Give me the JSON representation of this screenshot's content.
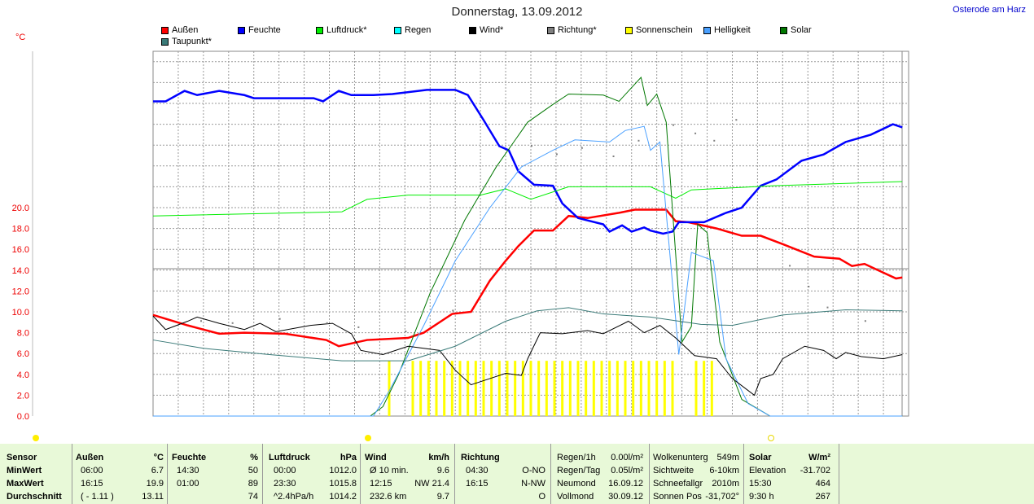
{
  "header": {
    "title": "Donnerstag, 13.09.2012",
    "location": "Osterode am Harz"
  },
  "chart_data": {
    "type": "line",
    "unit_label": "°C",
    "xlim": [
      0,
      24
    ],
    "ylim": [
      0,
      35
    ],
    "x_unit": "hours",
    "yticks": [
      "0.0",
      "2.0",
      "4.0",
      "6.0",
      "8.0",
      "10.0",
      "12.0",
      "14.0",
      "16.0",
      "18.0",
      "20.0"
    ],
    "grid": true,
    "legend": [
      {
        "name": "Außen",
        "color": "#ff0000"
      },
      {
        "name": "Feuchte",
        "color": "#0000ff"
      },
      {
        "name": "Luftdruck*",
        "color": "#00ee00"
      },
      {
        "name": "Regen",
        "color": "#00ffff"
      },
      {
        "name": "Wind*",
        "color": "#000000"
      },
      {
        "name": "Richtung*",
        "color": "#808080"
      },
      {
        "name": "Sonnenschein",
        "color": "#ffff00"
      },
      {
        "name": "Helligkeit",
        "color": "#4aa0ff"
      },
      {
        "name": "Solar",
        "color": "#007700"
      },
      {
        "name": "Taupunkt*",
        "color": "#3a7a78"
      }
    ],
    "series": [
      {
        "name": "Außen",
        "color": "#ff0000",
        "width": 2.5,
        "points": [
          [
            0,
            9.7
          ],
          [
            1.1,
            8.7
          ],
          [
            2.1,
            7.9
          ],
          [
            2.9,
            8.0
          ],
          [
            4.2,
            7.9
          ],
          [
            5.5,
            7.3
          ],
          [
            5.9,
            6.7
          ],
          [
            6.8,
            7.3
          ],
          [
            8.1,
            7.5
          ],
          [
            8.6,
            8.0
          ],
          [
            9.2,
            9.2
          ],
          [
            9.5,
            9.8
          ],
          [
            10.1,
            10.0
          ],
          [
            10.7,
            13.0
          ],
          [
            11.2,
            14.9
          ],
          [
            11.6,
            16.3
          ],
          [
            12.1,
            17.8
          ],
          [
            12.7,
            17.8
          ],
          [
            13.2,
            19.2
          ],
          [
            13.8,
            19.0
          ],
          [
            14.8,
            19.5
          ],
          [
            15.3,
            19.8
          ],
          [
            16.3,
            19.8
          ],
          [
            16.6,
            18.7
          ],
          [
            17.0,
            18.6
          ],
          [
            17.9,
            18.0
          ],
          [
            18.7,
            17.3
          ],
          [
            19.3,
            17.3
          ],
          [
            20.0,
            16.5
          ],
          [
            21.0,
            15.3
          ],
          [
            21.8,
            15.1
          ],
          [
            22.2,
            14.4
          ],
          [
            22.6,
            14.6
          ],
          [
            23.1,
            13.9
          ],
          [
            23.6,
            13.2
          ],
          [
            23.8,
            13.3
          ]
        ]
      },
      {
        "name": "Feuchte",
        "color": "#0000ff",
        "width": 2.5,
        "points": [
          [
            0,
            30.2
          ],
          [
            0.4,
            30.2
          ],
          [
            1.0,
            31.2
          ],
          [
            1.4,
            30.8
          ],
          [
            2.1,
            31.2
          ],
          [
            2.9,
            30.8
          ],
          [
            3.2,
            30.5
          ],
          [
            5.1,
            30.5
          ],
          [
            5.4,
            30.2
          ],
          [
            5.9,
            31.2
          ],
          [
            6.3,
            30.8
          ],
          [
            7.0,
            30.8
          ],
          [
            7.6,
            30.9
          ],
          [
            8.7,
            31.3
          ],
          [
            9.6,
            31.3
          ],
          [
            10.0,
            30.8
          ],
          [
            10.5,
            28.4
          ],
          [
            11.0,
            25.9
          ],
          [
            11.3,
            25.5
          ],
          [
            11.6,
            23.5
          ],
          [
            12.1,
            22.2
          ],
          [
            12.7,
            22.1
          ],
          [
            13.0,
            20.4
          ],
          [
            13.5,
            19.0
          ],
          [
            14.3,
            18.4
          ],
          [
            14.5,
            17.7
          ],
          [
            14.9,
            18.3
          ],
          [
            15.2,
            17.7
          ],
          [
            15.6,
            18.1
          ],
          [
            15.8,
            17.8
          ],
          [
            16.2,
            17.5
          ],
          [
            16.5,
            17.7
          ],
          [
            16.7,
            18.6
          ],
          [
            17.5,
            18.6
          ],
          [
            18.2,
            19.5
          ],
          [
            18.7,
            20.0
          ],
          [
            19.3,
            22.1
          ],
          [
            19.8,
            22.7
          ],
          [
            20.6,
            24.5
          ],
          [
            21.3,
            25.1
          ],
          [
            22.0,
            26.3
          ],
          [
            22.8,
            27.0
          ],
          [
            23.5,
            28.0
          ],
          [
            23.8,
            27.7
          ]
        ]
      },
      {
        "name": "Luftdruck*",
        "color": "#00ee00",
        "width": 1,
        "points": [
          [
            0,
            19.2
          ],
          [
            6.0,
            19.6
          ],
          [
            6.8,
            20.8
          ],
          [
            8.1,
            21.2
          ],
          [
            10.4,
            21.2
          ],
          [
            11.2,
            21.8
          ],
          [
            12.0,
            20.8
          ],
          [
            13.2,
            22.0
          ],
          [
            15.8,
            22.0
          ],
          [
            16.6,
            20.9
          ],
          [
            17.1,
            21.7
          ],
          [
            19.7,
            22.1
          ],
          [
            23.8,
            22.5
          ]
        ]
      },
      {
        "name": "Solar",
        "color": "#007700",
        "width": 1,
        "points": [
          [
            0,
            0
          ],
          [
            6.9,
            0
          ],
          [
            7.3,
            0.9
          ],
          [
            7.8,
            4.0
          ],
          [
            8.8,
            11.8
          ],
          [
            9.9,
            18.8
          ],
          [
            10.9,
            23.9
          ],
          [
            11.9,
            28.2
          ],
          [
            12.7,
            29.9
          ],
          [
            13.2,
            30.9
          ],
          [
            14.3,
            30.8
          ],
          [
            14.8,
            30.2
          ],
          [
            15.5,
            32.5
          ],
          [
            15.7,
            29.8
          ],
          [
            16.0,
            30.9
          ],
          [
            16.3,
            28.2
          ],
          [
            16.8,
            7.1
          ],
          [
            17.1,
            8.6
          ],
          [
            17.3,
            18.4
          ],
          [
            17.6,
            17.6
          ],
          [
            18.0,
            7.1
          ],
          [
            18.7,
            1.6
          ],
          [
            19.6,
            0
          ],
          [
            23.8,
            0
          ]
        ]
      },
      {
        "name": "Helligkeit",
        "color": "#4aa0ff",
        "width": 1,
        "points": [
          [
            0,
            0
          ],
          [
            7.0,
            0
          ],
          [
            7.5,
            2.4
          ],
          [
            8.6,
            8.7
          ],
          [
            9.6,
            14.9
          ],
          [
            10.7,
            20.0
          ],
          [
            11.7,
            23.9
          ],
          [
            12.7,
            25.5
          ],
          [
            13.4,
            26.5
          ],
          [
            14.5,
            26.3
          ],
          [
            15.0,
            27.4
          ],
          [
            15.6,
            27.8
          ],
          [
            15.8,
            25.5
          ],
          [
            16.1,
            26.3
          ],
          [
            16.7,
            5.9
          ],
          [
            17.1,
            15.7
          ],
          [
            17.8,
            14.9
          ],
          [
            18.2,
            5.5
          ],
          [
            18.9,
            1.2
          ],
          [
            19.6,
            0
          ],
          [
            23.8,
            0
          ]
        ]
      },
      {
        "name": "Wind*",
        "color": "#000000",
        "width": 1,
        "points": [
          [
            0,
            9.6
          ],
          [
            0.4,
            8.3
          ],
          [
            1.1,
            9.1
          ],
          [
            1.4,
            9.5
          ],
          [
            2.1,
            8.9
          ],
          [
            2.9,
            8.3
          ],
          [
            3.4,
            8.9
          ],
          [
            3.9,
            8.1
          ],
          [
            5.0,
            8.7
          ],
          [
            5.7,
            8.9
          ],
          [
            6.3,
            7.9
          ],
          [
            6.6,
            6.3
          ],
          [
            7.3,
            5.9
          ],
          [
            8.1,
            6.7
          ],
          [
            9.1,
            6.3
          ],
          [
            9.6,
            4.4
          ],
          [
            10.1,
            3.0
          ],
          [
            10.7,
            3.6
          ],
          [
            11.2,
            4.1
          ],
          [
            11.7,
            3.9
          ],
          [
            11.9,
            5.5
          ],
          [
            12.3,
            8.0
          ],
          [
            13.0,
            7.9
          ],
          [
            13.8,
            8.2
          ],
          [
            14.3,
            7.9
          ],
          [
            15.1,
            9.1
          ],
          [
            15.6,
            8.0
          ],
          [
            16.1,
            8.7
          ],
          [
            16.6,
            7.5
          ],
          [
            17.2,
            5.8
          ],
          [
            17.9,
            5.5
          ],
          [
            18.4,
            3.6
          ],
          [
            19.1,
            2.0
          ],
          [
            19.3,
            3.6
          ],
          [
            19.7,
            4.0
          ],
          [
            20.0,
            5.5
          ],
          [
            20.7,
            6.7
          ],
          [
            21.3,
            6.3
          ],
          [
            21.7,
            5.5
          ],
          [
            22.0,
            6.1
          ],
          [
            22.5,
            5.7
          ],
          [
            23.2,
            5.5
          ],
          [
            23.8,
            5.9
          ]
        ]
      },
      {
        "name": "Taupunkt*",
        "color": "#3a7a78",
        "width": 1,
        "points": [
          [
            0,
            7.3
          ],
          [
            1.6,
            6.5
          ],
          [
            3.7,
            5.9
          ],
          [
            6.0,
            5.3
          ],
          [
            8.1,
            5.3
          ],
          [
            9.6,
            6.7
          ],
          [
            11.2,
            9.1
          ],
          [
            12.2,
            10.1
          ],
          [
            13.2,
            10.4
          ],
          [
            14.3,
            9.8
          ],
          [
            15.8,
            9.5
          ],
          [
            17.4,
            8.8
          ],
          [
            18.4,
            8.7
          ],
          [
            20.0,
            9.7
          ],
          [
            22.0,
            10.2
          ],
          [
            23.8,
            10.1
          ]
        ]
      }
    ],
    "richtung_dots": [
      [
        1.5,
        9.2
      ],
      [
        2.5,
        9.0
      ],
      [
        4.0,
        9.4
      ],
      [
        5.5,
        9.0
      ],
      [
        6.5,
        8.6
      ],
      [
        8.0,
        8.2
      ],
      [
        9.5,
        10.2
      ],
      [
        12.0,
        26.0
      ],
      [
        12.8,
        25.2
      ],
      [
        13.6,
        25.8
      ],
      [
        14.6,
        25.0
      ],
      [
        15.4,
        26.5
      ],
      [
        16.5,
        28.0
      ],
      [
        17.2,
        27.2
      ],
      [
        17.8,
        26.5
      ],
      [
        18.5,
        28.5
      ],
      [
        20.2,
        14.5
      ],
      [
        20.8,
        12.5
      ],
      [
        21.4,
        10.5
      ],
      [
        22.6,
        9.2
      ]
    ],
    "sunshine_hours": [
      7.5,
      8.25,
      8.5,
      8.75,
      9.0,
      9.25,
      9.5,
      9.75,
      10.0,
      10.25,
      10.5,
      10.75,
      11.0,
      11.25,
      11.5,
      11.75,
      12.0,
      12.25,
      12.5,
      12.75,
      13.0,
      13.25,
      13.5,
      13.75,
      14.0,
      14.25,
      14.5,
      14.75,
      15.0,
      15.25,
      15.5,
      15.75,
      16.0,
      16.25,
      16.5,
      17.25,
      17.5,
      17.75
    ],
    "sunshine_level": 5.3
  },
  "table": {
    "sensor": {
      "h": "Sensor",
      "r": [
        "MinWert",
        "MaxWert",
        "Durchschnitt"
      ]
    },
    "aussen": {
      "h": "Außen",
      "u": "°C",
      "t": [
        "06:00",
        "16:15",
        "( - 1.11 )"
      ],
      "v": [
        "6.7",
        "19.9",
        "13.11"
      ]
    },
    "feuchte": {
      "h": "Feuchte",
      "u": "%",
      "t": [
        "14:30",
        "01:00",
        ""
      ],
      "v": [
        "50",
        "89",
        "74"
      ]
    },
    "luftdruck": {
      "h": "Luftdruck",
      "u": "hPa",
      "t": [
        "00:00",
        "23:30",
        "^2.4hPa/h"
      ],
      "v": [
        "1012.0",
        "1015.8",
        "1014.2"
      ]
    },
    "wind": {
      "h": "Wind",
      "u": "km/h",
      "t": [
        "Ø 10 min.",
        "12:15",
        "232.6 km"
      ],
      "v": [
        "9.6",
        "NW 21.4",
        "9.7"
      ]
    },
    "richtung": {
      "h": "Richtung",
      "u": "",
      "t": [
        "04:30",
        "16:15",
        ""
      ],
      "v": [
        "O-NO",
        "N-NW",
        "O"
      ]
    },
    "regen": {
      "t": [
        "Regen/1h",
        "Regen/Tag",
        "Neumond",
        "Vollmond"
      ],
      "v": [
        "0.00l/m²",
        "0.05l/m²",
        "16.09.12",
        "30.09.12"
      ]
    },
    "wolken": {
      "t": [
        "Wolkenunterg",
        "Sichtweite",
        "Schneefallgr",
        "Sonnen Pos"
      ],
      "v": [
        "549m",
        "6-10km",
        "2010m",
        "-31,702°"
      ]
    },
    "solar": {
      "h": "Solar",
      "u": "W/m²",
      "t": [
        "Elevation",
        "15:30",
        "9:30 h"
      ],
      "v": [
        "-31.702",
        "464",
        "267"
      ]
    }
  }
}
